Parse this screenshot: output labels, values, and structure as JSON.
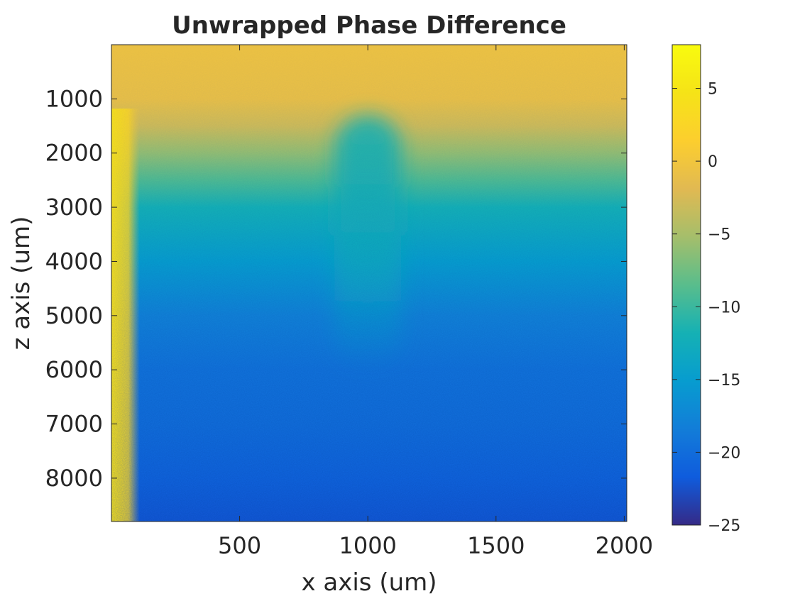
{
  "chart_data": {
    "type": "heatmap",
    "title": "Unwrapped Phase Difference",
    "xlabel": "x axis (um)",
    "ylabel": "z axis (um)",
    "xlim": [
      0,
      2010
    ],
    "ylim": [
      8800,
      0
    ],
    "y_direction": "reversed",
    "xticks": [
      500,
      1000,
      1500,
      2000
    ],
    "yticks": [
      1000,
      2000,
      3000,
      4000,
      5000,
      6000,
      7000,
      8000
    ],
    "colorbar": {
      "colormap": "parula",
      "clim": [
        -25,
        8
      ],
      "ticks": [
        5,
        0,
        -5,
        -10,
        -15,
        -20,
        -25
      ],
      "tick_labels": [
        "5",
        "0",
        "−5",
        "−10",
        "−15",
        "−20",
        "−25"
      ]
    },
    "grid": false,
    "field_description_values": {
      "z_profile_um": [
        0,
        1000,
        1500,
        2000,
        2500,
        3000,
        4000,
        5000,
        6000,
        7000,
        8000,
        8800
      ],
      "background_phase": [
        -0.5,
        -1,
        -3,
        -6,
        -9,
        -12,
        -15,
        -18,
        -19.5,
        -20,
        -21,
        -22
      ],
      "left_edge_phase_x0_to_60um": 4,
      "central_column_x_um": [
        870,
        1130
      ],
      "central_column_z_um": [
        1300,
        6000
      ],
      "central_column_phase": -13
    }
  }
}
